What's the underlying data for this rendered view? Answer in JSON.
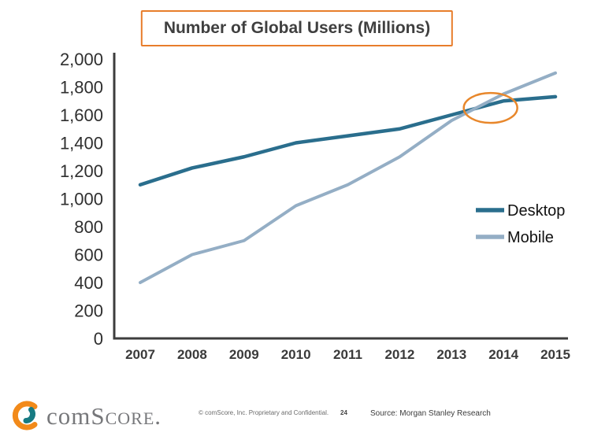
{
  "title": "Number of Global Users (Millions)",
  "chart_data": {
    "type": "line",
    "title": "Number of Global Users (Millions)",
    "x": [
      2007,
      2008,
      2009,
      2010,
      2011,
      2012,
      2013,
      2014,
      2015
    ],
    "series": [
      {
        "name": "Desktop",
        "color": "#2A6E8D",
        "values": [
          1100,
          1220,
          1300,
          1400,
          1450,
          1500,
          1600,
          1700,
          1730
        ]
      },
      {
        "name": "Mobile",
        "color": "#94AEC5",
        "values": [
          400,
          600,
          700,
          950,
          1100,
          1300,
          1560,
          1750,
          1900
        ]
      }
    ],
    "ylim": [
      0,
      2000
    ],
    "ytick_step": 200,
    "grid": false,
    "legend_position": "right-inside",
    "annotation": {
      "type": "ellipse",
      "x": 2013.75,
      "y": 1650,
      "label": "desktop-mobile-crossover",
      "color": "#E8872B"
    }
  },
  "footer": {
    "logo_prefix": "com",
    "logo_suffix": "Score.",
    "copyright": "© comScore, Inc. Proprietary and Confidential.",
    "page_number": "24",
    "source": "Source: Morgan Stanley Research"
  },
  "colors": {
    "title_border": "#E87D2B",
    "axis": "#3d3d3d",
    "tick_label": "#2f2f2f",
    "x_tick_label": "#3a3a3a",
    "legend_text": "#111111",
    "annotation": "#E8872B",
    "logo_orange": "#F28A1A",
    "logo_teal": "#177B83",
    "logo_text": "#77787B"
  }
}
